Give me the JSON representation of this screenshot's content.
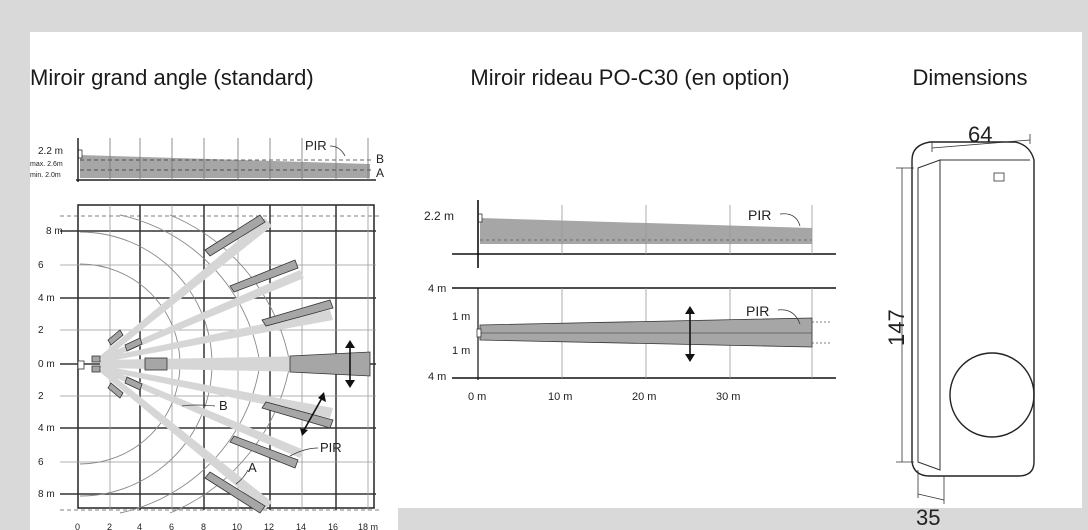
{
  "headings": {
    "wide_angle": "Miroir grand angle (standard)",
    "curtain": "Miroir rideau PO-C30 (en option)",
    "dimensions": "Dimensions"
  },
  "wide_angle": {
    "side_view": {
      "height_label": "2.2 m",
      "max_label": "max. 2.6m",
      "min_label": "min. 2.0m",
      "pir_label": "PIR",
      "line_b": "B",
      "line_a": "A"
    },
    "top_view": {
      "y_labels": [
        "8 m",
        "6",
        "4 m",
        "2",
        "0 m",
        "2",
        "4 m",
        "6",
        "8 m"
      ],
      "x_labels": [
        "0",
        "2",
        "4",
        "6",
        "8",
        "10",
        "12",
        "14",
        "16",
        "18 m"
      ],
      "label_b": "B",
      "label_pir": "PIR",
      "label_a": "A"
    }
  },
  "curtain": {
    "side_view": {
      "height_label": "2.2 m",
      "pir_label": "PIR"
    },
    "top_view": {
      "y_labels": [
        "4 m",
        "1 m",
        "1 m",
        "4 m"
      ],
      "x_labels": [
        "0 m",
        "10 m",
        "20 m",
        "30 m"
      ],
      "pir_label": "PIR"
    }
  },
  "dimensions": {
    "width": "64",
    "height": "147",
    "depth": "35"
  },
  "colors": {
    "zone_fill": "#a6a6a6",
    "zone_light": "#cfcfcf",
    "grid": "#555555",
    "background": "#d9d9d9"
  }
}
